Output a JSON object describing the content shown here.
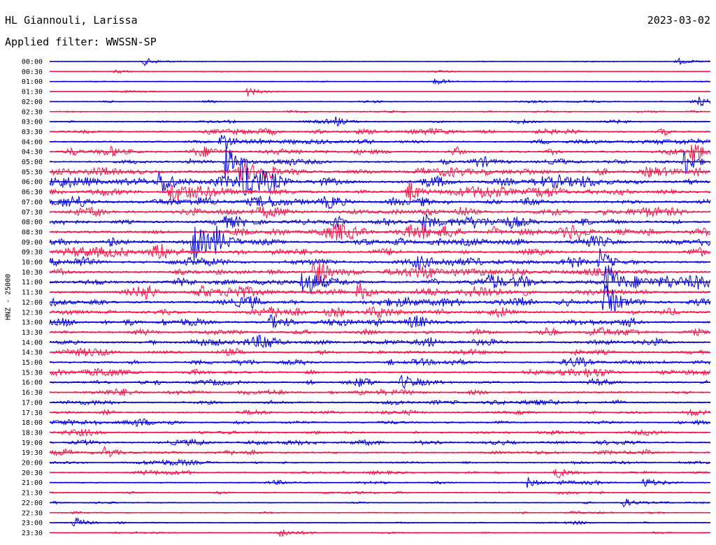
{
  "header": {
    "station": "HL Giannouli, Larissa",
    "date": "2023-03-02",
    "filter": "Applied filter: WWSSN-SP"
  },
  "chart_data": {
    "type": "line",
    "title": "HL Giannouli, Larissa",
    "ylabel": "HNZ - 25000",
    "trace_times": [
      "00:00",
      "00:30",
      "01:00",
      "01:30",
      "02:00",
      "02:30",
      "03:00",
      "03:30",
      "04:00",
      "04:30",
      "05:00",
      "05:30",
      "06:00",
      "06:30",
      "07:00",
      "07:30",
      "08:00",
      "08:30",
      "09:00",
      "09:30",
      "10:00",
      "10:30",
      "11:00",
      "11:30",
      "12:00",
      "12:30",
      "13:00",
      "13:30",
      "14:00",
      "14:30",
      "15:00",
      "15:30",
      "16:00",
      "16:30",
      "17:00",
      "17:30",
      "18:00",
      "18:30",
      "19:00",
      "19:30",
      "20:00",
      "20:30",
      "21:00",
      "21:30",
      "22:00",
      "22:30",
      "23:00",
      "23:30"
    ],
    "trace_colors": [
      "#0000d8",
      "#f0164a"
    ],
    "noise_level": [
      0.1,
      0.1,
      0.1,
      0.1,
      0.2,
      0.2,
      0.3,
      0.6,
      0.5,
      0.7,
      0.6,
      0.9,
      1.0,
      0.9,
      0.9,
      0.9,
      0.8,
      0.9,
      0.8,
      0.8,
      0.8,
      0.8,
      1.0,
      0.9,
      0.8,
      0.8,
      0.8,
      0.7,
      0.7,
      0.6,
      0.6,
      0.6,
      0.6,
      0.5,
      0.5,
      0.5,
      0.5,
      0.5,
      0.5,
      0.5,
      0.4,
      0.4,
      0.3,
      0.3,
      0.2,
      0.2,
      0.2,
      0.2
    ],
    "events": [
      {
        "trace": 0,
        "minute": 4.3,
        "amplitude": 0.5
      },
      {
        "trace": 0,
        "minute": 28.5,
        "amplitude": 0.45
      },
      {
        "trace": 1,
        "minute": 3.0,
        "amplitude": 0.3
      },
      {
        "trace": 2,
        "minute": 17.5,
        "amplitude": 0.4
      },
      {
        "trace": 3,
        "minute": 9.0,
        "amplitude": 0.6
      },
      {
        "trace": 4,
        "minute": 29.5,
        "amplitude": 0.6
      },
      {
        "trace": 6,
        "minute": 13.0,
        "amplitude": 0.6
      },
      {
        "trace": 8,
        "minute": 7.8,
        "amplitude": 1.5
      },
      {
        "trace": 9,
        "minute": 29.2,
        "amplitude": 1.8
      },
      {
        "trace": 10,
        "minute": 8.0,
        "amplitude": 2.4
      },
      {
        "trace": 10,
        "minute": 28.8,
        "amplitude": 2.0
      },
      {
        "trace": 11,
        "minute": 8.5,
        "amplitude": 1.6
      },
      {
        "trace": 12,
        "minute": 5.0,
        "amplitude": 1.8
      },
      {
        "trace": 12,
        "minute": 8.7,
        "amplitude": 2.2
      },
      {
        "trace": 13,
        "minute": 5.5,
        "amplitude": 1.5
      },
      {
        "trace": 13,
        "minute": 16.3,
        "amplitude": 1.3
      },
      {
        "trace": 16,
        "minute": 17.0,
        "amplitude": 1.2
      },
      {
        "trace": 18,
        "minute": 6.5,
        "amplitude": 2.5
      },
      {
        "trace": 18,
        "minute": 7.5,
        "amplitude": 2.0
      },
      {
        "trace": 20,
        "minute": 25.0,
        "amplitude": 1.8
      },
      {
        "trace": 21,
        "minute": 12.0,
        "amplitude": 2.4
      },
      {
        "trace": 22,
        "minute": 11.5,
        "amplitude": 1.6
      },
      {
        "trace": 22,
        "minute": 25.3,
        "amplitude": 2.6
      },
      {
        "trace": 23,
        "minute": 14.0,
        "amplitude": 1.5
      },
      {
        "trace": 24,
        "minute": 25.2,
        "amplitude": 2.2
      },
      {
        "trace": 26,
        "minute": 10.0,
        "amplitude": 1.0
      },
      {
        "trace": 32,
        "minute": 16.0,
        "amplitude": 1.0
      },
      {
        "trace": 39,
        "minute": 2.5,
        "amplitude": 0.9
      },
      {
        "trace": 41,
        "minute": 23.0,
        "amplitude": 0.9
      },
      {
        "trace": 42,
        "minute": 21.7,
        "amplitude": 0.7
      },
      {
        "trace": 42,
        "minute": 27.0,
        "amplitude": 0.7
      },
      {
        "trace": 44,
        "minute": 26.0,
        "amplitude": 0.7
      },
      {
        "trace": 46,
        "minute": 1.1,
        "amplitude": 0.8
      },
      {
        "trace": 47,
        "minute": 10.5,
        "amplitude": 0.6
      }
    ]
  }
}
